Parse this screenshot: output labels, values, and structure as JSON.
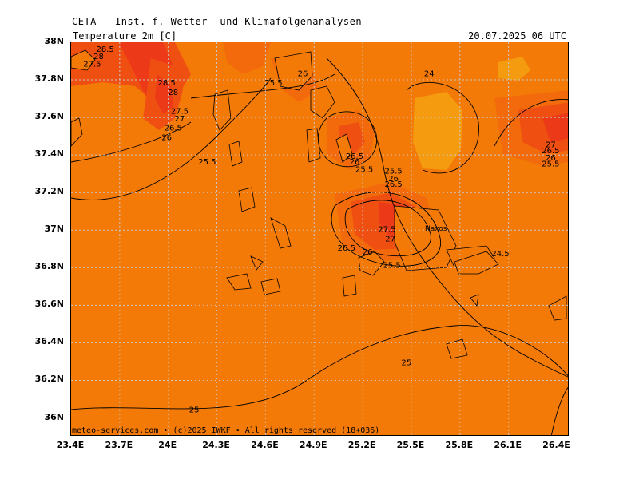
{
  "header": {
    "title": "CETA — Inst. f. Wetter— und Klimafolgenanalysen —"
  },
  "map": {
    "parameter": "Temperature 2m [C]",
    "datetime": "20.07.2025 06 UTC",
    "credit": "meteo-services.com • (c)2025 IWKF • All rights reserved (18+036)",
    "place_label": "Naxos",
    "colors": {
      "t24": "#f59b0f",
      "t25": "#f47a08",
      "t26": "#f26a0b",
      "t27": "#ef5012",
      "t28": "#ec3a18",
      "contour": "#000000",
      "grid": "#c8c8c8",
      "land": "#f47a08"
    },
    "lat_ticks": [
      "38N",
      "37.8N",
      "37.6N",
      "37.4N",
      "37.2N",
      "37N",
      "36.8N",
      "36.6N",
      "36.4N",
      "36.2N",
      "36N"
    ],
    "lon_ticks": [
      "23.4E",
      "23.7E",
      "24E",
      "24.3E",
      "24.6E",
      "24.9E",
      "25.2E",
      "25.5E",
      "25.8E",
      "26.1E",
      "26.4E"
    ],
    "contour_labels": [
      {
        "text": "28.5",
        "lon": 23.61,
        "lat": 37.95
      },
      {
        "text": "28",
        "lon": 23.57,
        "lat": 37.91
      },
      {
        "text": "27.5",
        "lon": 23.53,
        "lat": 37.87
      },
      {
        "text": "28.5",
        "lon": 23.99,
        "lat": 37.77
      },
      {
        "text": "28",
        "lon": 24.03,
        "lat": 37.72
      },
      {
        "text": "27.5",
        "lon": 24.07,
        "lat": 37.62
      },
      {
        "text": "27",
        "lon": 24.07,
        "lat": 37.58
      },
      {
        "text": "26.5",
        "lon": 24.03,
        "lat": 37.53
      },
      {
        "text": "26",
        "lon": 23.99,
        "lat": 37.48
      },
      {
        "text": "25.5",
        "lon": 24.24,
        "lat": 37.35
      },
      {
        "text": "25.5",
        "lon": 24.65,
        "lat": 37.77
      },
      {
        "text": "26",
        "lon": 24.83,
        "lat": 37.82
      },
      {
        "text": "24",
        "lon": 25.61,
        "lat": 37.82
      },
      {
        "text": "26.5",
        "lon": 25.15,
        "lat": 37.38
      },
      {
        "text": "26",
        "lon": 25.15,
        "lat": 37.35
      },
      {
        "text": "25.5",
        "lon": 25.21,
        "lat": 37.31
      },
      {
        "text": "25.5",
        "lon": 25.39,
        "lat": 37.3
      },
      {
        "text": "26",
        "lon": 25.39,
        "lat": 37.26
      },
      {
        "text": "26.5",
        "lon": 25.39,
        "lat": 37.23
      },
      {
        "text": "27.5",
        "lon": 25.35,
        "lat": 36.99
      },
      {
        "text": "27",
        "lon": 25.37,
        "lat": 36.94
      },
      {
        "text": "26.5",
        "lon": 25.1,
        "lat": 36.89
      },
      {
        "text": "26",
        "lon": 25.23,
        "lat": 36.87
      },
      {
        "text": "25.5",
        "lon": 25.38,
        "lat": 36.8
      },
      {
        "text": "24.5",
        "lon": 26.05,
        "lat": 36.86
      },
      {
        "text": "27",
        "lon": 26.36,
        "lat": 37.44
      },
      {
        "text": "26.5",
        "lon": 26.36,
        "lat": 37.41
      },
      {
        "text": "26",
        "lon": 26.36,
        "lat": 37.37
      },
      {
        "text": "25.5",
        "lon": 26.36,
        "lat": 37.34
      },
      {
        "text": "25",
        "lon": 25.47,
        "lat": 36.28
      },
      {
        "text": "25",
        "lon": 24.16,
        "lat": 36.03
      }
    ]
  }
}
